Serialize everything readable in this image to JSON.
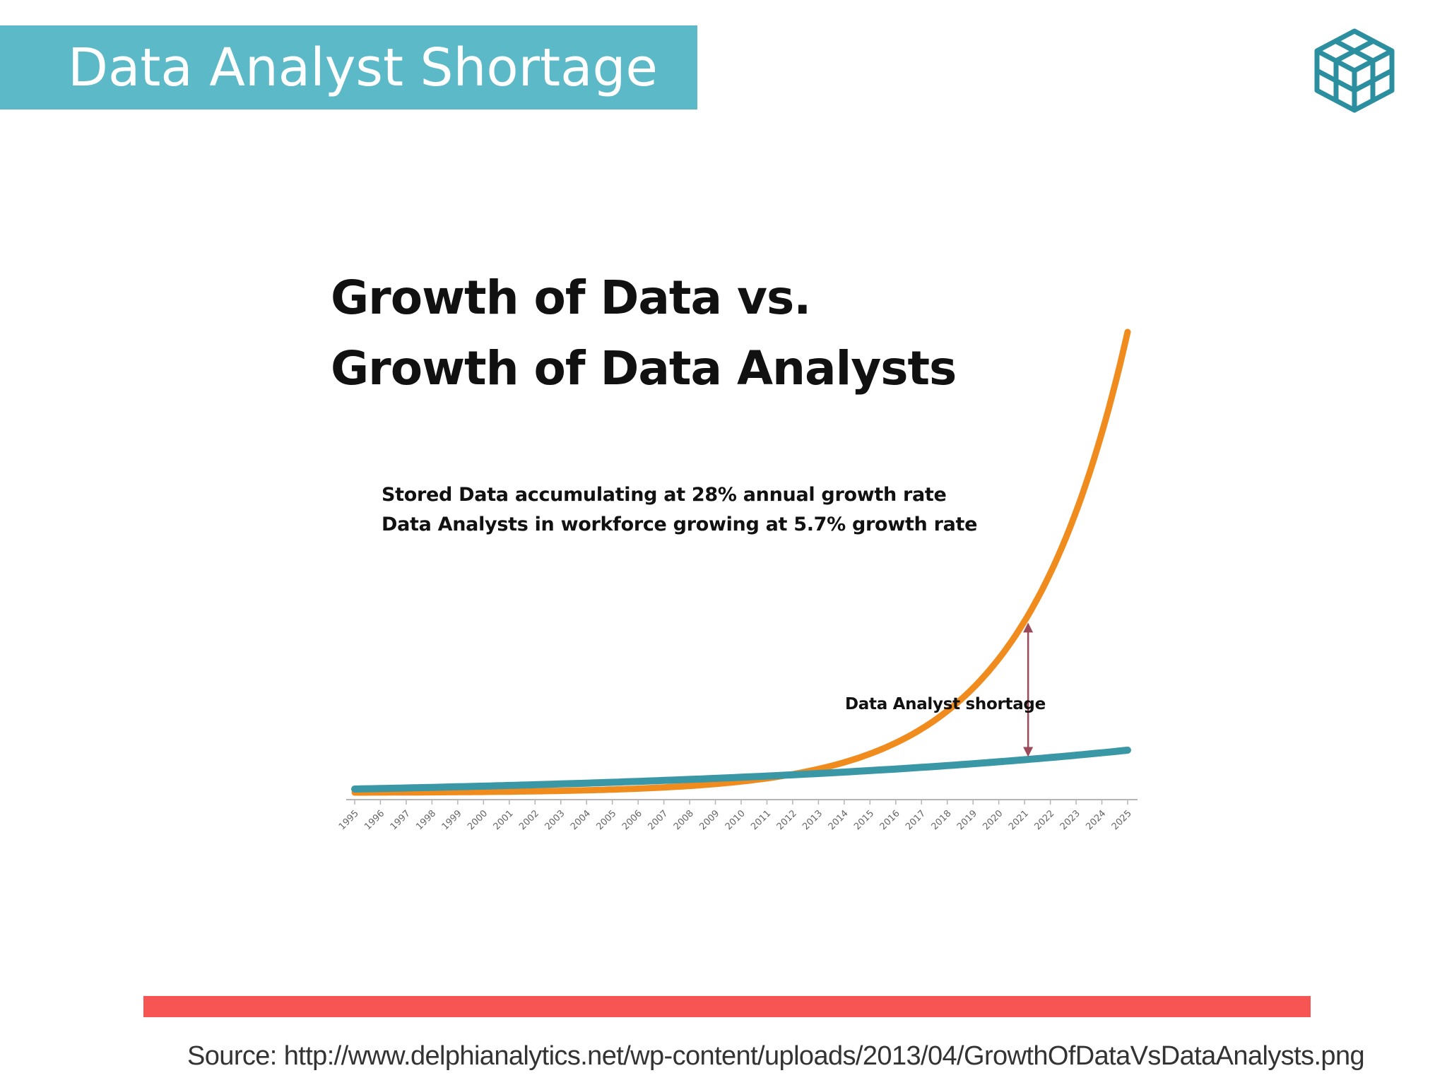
{
  "slide": {
    "title": "Data Analyst Shortage",
    "source": "Source: http://www.delphianalytics.net/wp-content/uploads/2013/04/GrowthOfDataVsDataAnalysts.png",
    "colors": {
      "title_bg": "#5cbac8",
      "bar": "#f75553",
      "logo": "#2b8fa0"
    },
    "logo_icon": "isometric-cube-logo-icon"
  },
  "chart_data": {
    "type": "line",
    "title_lines": [
      "Growth of Data vs.",
      "Growth of Data Analysts"
    ],
    "annotation_lines": [
      "Stored Data accumulating at 28% annual growth rate",
      "Data Analysts in workforce growing at 5.7% growth rate"
    ],
    "shortage_label": "Data Analyst shortage",
    "shortage_year": 2021,
    "x": [
      1995,
      1996,
      1997,
      1998,
      1999,
      2000,
      2001,
      2002,
      2003,
      2004,
      2005,
      2006,
      2007,
      2008,
      2009,
      2010,
      2011,
      2012,
      2013,
      2014,
      2015,
      2016,
      2017,
      2018,
      2019,
      2020,
      2021,
      2022,
      2023,
      2024,
      2025
    ],
    "x_tick_labels": [
      "1995",
      "1996",
      "1997",
      "1998",
      "1999",
      "2000",
      "2001",
      "2002",
      "2003",
      "2004",
      "2005",
      "2006",
      "2007",
      "2008",
      "2009",
      "2010",
      "2011",
      "2012",
      "2013",
      "2014",
      "2015",
      "2016",
      "2017",
      "2018",
      "2019",
      "2020",
      "2021",
      "2022",
      "2023",
      "2024",
      "2025"
    ],
    "series": [
      {
        "color": "#f08c1e",
        "growth_rate": 0.28
      },
      {
        "color": "#3a97a6",
        "growth_rate": 0.057
      }
    ],
    "grid": false,
    "legend": "none"
  }
}
